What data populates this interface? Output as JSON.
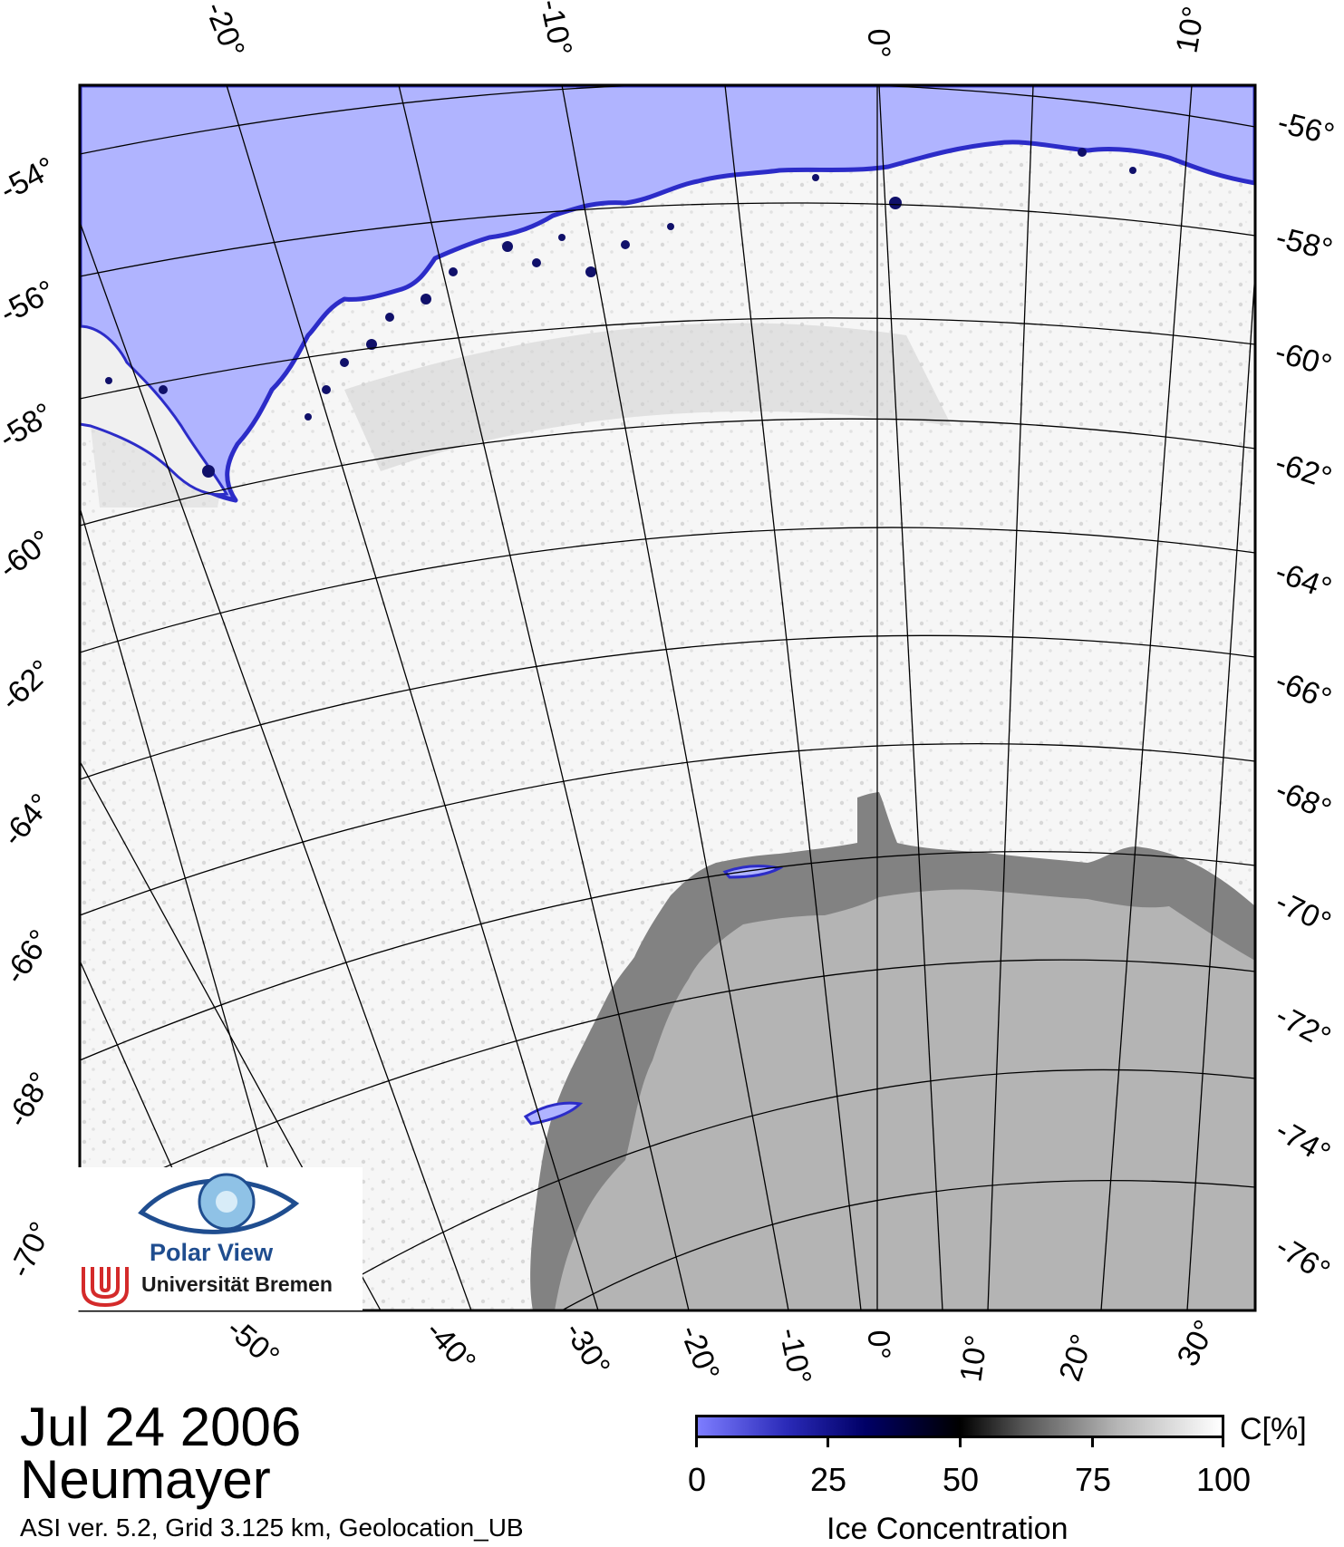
{
  "map": {
    "top_longitude_labels": [
      "-20°",
      "-10°",
      "0°",
      "10°"
    ],
    "left_latitude_labels": [
      "-54°",
      "-56°",
      "-58°",
      "-60°",
      "-62°",
      "-64°",
      "-66°",
      "-68°",
      "-70°"
    ],
    "right_latitude_labels": [
      "-56°",
      "-58°",
      "-60°",
      "-62°",
      "-64°",
      "-66°",
      "-68°",
      "-70°",
      "-72°",
      "-74°",
      "-76°"
    ],
    "bottom_longitude_labels": [
      "-50°",
      "-40°",
      "-30°",
      "-20°",
      "-10°",
      "0°",
      "10°",
      "20°",
      "30°"
    ],
    "colors": {
      "open_water": "#b0b4ff",
      "coast_edge": "#2c2cc8",
      "ice_high": "#ffffff",
      "land": "#b4b4b4",
      "ice_shelf": "#828282",
      "grid": "#000000"
    }
  },
  "caption": {
    "date": "Jul 24 2006",
    "station": "Neumayer",
    "version": "ASI ver. 5.2,  Grid 3.125 km, Geolocation_UB"
  },
  "colorbar": {
    "ticks": [
      "0",
      "25",
      "50",
      "75",
      "100"
    ],
    "unit": "C[%]",
    "title": "Ice Concentration"
  },
  "logo": {
    "name": "Polar View",
    "university": "Universität Bremen"
  }
}
